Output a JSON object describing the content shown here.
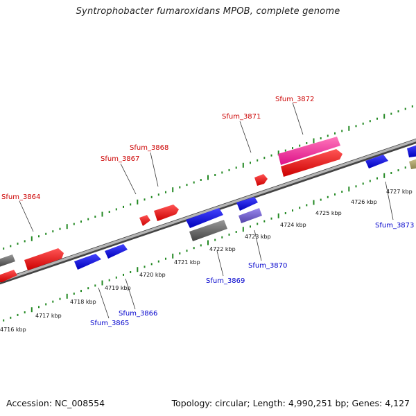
{
  "title": "Syntrophobacter fumaroxidans MPOB, complete genome",
  "footer": {
    "accession": "Accession: NC_008554",
    "summary": "Topology: circular; Length: 4,990,251 bp; Genes: 4,127"
  },
  "colors": {
    "forward_gene": "#ff0000",
    "reverse_gene": "#0000ee",
    "selected_gene": "#ff3399",
    "grey_gene": "#666666",
    "light_blue_gene": "#7766cc",
    "olive_gene": "#aaa066",
    "backbone": "#888888",
    "tick_green": "#228822",
    "label_red": "#cc0000",
    "label_blue": "#0000cc"
  },
  "scale_labels": [
    "4716 kbp",
    "4717 kbp",
    "4718 kbp",
    "4719 kbp",
    "4720 kbp",
    "4721 kbp",
    "4722 kbp",
    "4723 kbp",
    "4724 kbp",
    "4725 kbp",
    "4726 kbp",
    "4727 kbp"
  ],
  "gene_labels": [
    {
      "text": "Sfum_3864",
      "strand": "top"
    },
    {
      "text": "Sfum_3867",
      "strand": "top"
    },
    {
      "text": "Sfum_3868",
      "strand": "top"
    },
    {
      "text": "Sfum_3871",
      "strand": "top"
    },
    {
      "text": "Sfum_3872",
      "strand": "top"
    },
    {
      "text": "Sfum_3865",
      "strand": "bottom"
    },
    {
      "text": "Sfum_3866",
      "strand": "bottom"
    },
    {
      "text": "Sfum_3869",
      "strand": "bottom"
    },
    {
      "text": "Sfum_3870",
      "strand": "bottom"
    },
    {
      "text": "Sfum_3873",
      "strand": "bottom"
    }
  ]
}
